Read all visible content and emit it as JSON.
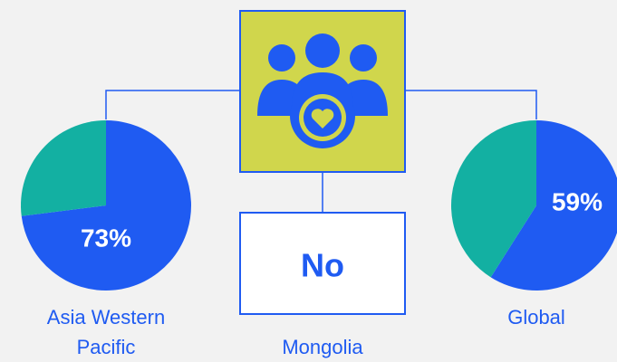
{
  "chart_data": [
    {
      "type": "pie",
      "title": "Asia Western Pacific",
      "values": [
        73,
        27
      ],
      "value_labels": [
        "73%",
        null
      ],
      "colors": [
        "#1f5bf2",
        "#13b0a2"
      ]
    },
    {
      "type": "pie",
      "title": "Global",
      "values": [
        59,
        41
      ],
      "value_labels": [
        "59%",
        null
      ],
      "colors": [
        "#1f5bf2",
        "#13b0a2"
      ]
    }
  ],
  "center": {
    "answer": "No",
    "label": "Mongolia"
  }
}
